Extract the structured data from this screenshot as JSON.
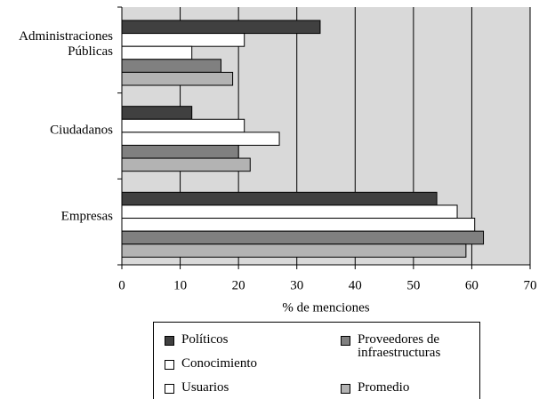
{
  "chart_data": {
    "type": "hbar",
    "categories": [
      "Administraciones Públicas",
      "Ciudadanos",
      "Empresas"
    ],
    "series": [
      {
        "name": "Políticos",
        "color": "#404040",
        "values": [
          34,
          12,
          54
        ]
      },
      {
        "name": "Conocimiento",
        "color": "#ffffff",
        "values": [
          21,
          21,
          57.5
        ]
      },
      {
        "name": "Usuarios",
        "color": "#ffffff",
        "values": [
          12,
          27,
          60.5
        ]
      },
      {
        "name": "Proveedores de infraestructuras",
        "color": "#808080",
        "values": [
          17,
          20,
          62
        ]
      },
      {
        "name": "Promedio",
        "color": "#b3b3b3",
        "values": [
          19,
          22,
          59
        ]
      }
    ],
    "xlabel": "% de menciones",
    "xlim": [
      0,
      70
    ],
    "xticks": [
      0,
      10,
      20,
      30,
      40,
      50,
      60,
      70
    ],
    "grid": true
  }
}
